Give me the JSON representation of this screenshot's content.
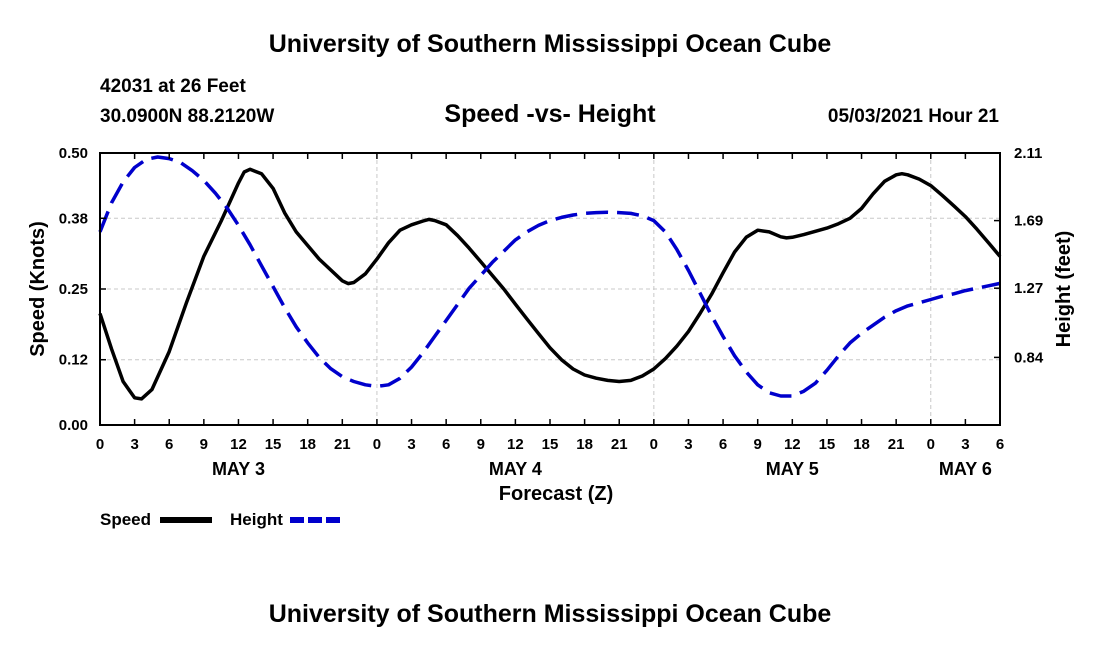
{
  "header": {
    "title": "University of Southern Mississippi Ocean Cube",
    "station": "42031 at 26 Feet",
    "coords": "30.0900N  88.2120W",
    "subtitle": "Speed -vs- Height",
    "datetime": "05/03/2021 Hour 21"
  },
  "footer": {
    "title": "University of Southern Mississippi Ocean Cube"
  },
  "chart_data": {
    "type": "line",
    "title": "Speed -vs- Height",
    "xlabel": "Forecast (Z)",
    "ylabel_left": "Speed (Knots)",
    "ylabel_right": "Height (feet)",
    "x_unit": "hours since May 3 00Z",
    "xlim": [
      0,
      78
    ],
    "ylim_left": [
      0.0,
      0.5
    ],
    "ylim_right": [
      0.42,
      2.11
    ],
    "yticks_left": [
      0.0,
      0.12,
      0.25,
      0.38,
      0.5
    ],
    "yticks_left_labels": [
      "0.00",
      "0.12",
      "0.25",
      "0.38",
      "0.50"
    ],
    "yticks_right": [
      0.84,
      1.27,
      1.69,
      2.11
    ],
    "yticks_right_labels": [
      "0.84",
      "1.27",
      "1.69",
      "2.11"
    ],
    "xticks": [
      0,
      3,
      6,
      9,
      12,
      15,
      18,
      21,
      24,
      27,
      30,
      33,
      36,
      39,
      42,
      45,
      48,
      51,
      54,
      57,
      60,
      63,
      66,
      69,
      72,
      75,
      78
    ],
    "xtick_labels": [
      "0",
      "3",
      "6",
      "9",
      "12",
      "15",
      "18",
      "21",
      "0",
      "3",
      "6",
      "9",
      "12",
      "15",
      "18",
      "21",
      "0",
      "3",
      "6",
      "9",
      "12",
      "15",
      "18",
      "21",
      "0",
      "3",
      "6"
    ],
    "day_labels": [
      {
        "x": 12,
        "label": "MAY 3"
      },
      {
        "x": 36,
        "label": "MAY 4"
      },
      {
        "x": 60,
        "label": "MAY 5"
      },
      {
        "x": 75,
        "label": "MAY 6"
      }
    ],
    "grid": true,
    "legend": "bottom-left",
    "series": [
      {
        "name": "Speed",
        "axis": "left",
        "color": "#000000",
        "dash": "solid",
        "points": [
          [
            0,
            0.205
          ],
          [
            1,
            0.14
          ],
          [
            2,
            0.08
          ],
          [
            3,
            0.05
          ],
          [
            3.6,
            0.048
          ],
          [
            4.5,
            0.065
          ],
          [
            6,
            0.135
          ],
          [
            7.5,
            0.225
          ],
          [
            9,
            0.31
          ],
          [
            10.5,
            0.375
          ],
          [
            12,
            0.445
          ],
          [
            12.5,
            0.465
          ],
          [
            13,
            0.47
          ],
          [
            14,
            0.462
          ],
          [
            15,
            0.435
          ],
          [
            16,
            0.39
          ],
          [
            17,
            0.355
          ],
          [
            18,
            0.33
          ],
          [
            19,
            0.305
          ],
          [
            20,
            0.285
          ],
          [
            21,
            0.265
          ],
          [
            21.5,
            0.26
          ],
          [
            22,
            0.262
          ],
          [
            23,
            0.278
          ],
          [
            24,
            0.305
          ],
          [
            25,
            0.335
          ],
          [
            26,
            0.358
          ],
          [
            27,
            0.368
          ],
          [
            28,
            0.375
          ],
          [
            28.5,
            0.378
          ],
          [
            29,
            0.376
          ],
          [
            30,
            0.368
          ],
          [
            31,
            0.348
          ],
          [
            32,
            0.325
          ],
          [
            33,
            0.3
          ],
          [
            34,
            0.275
          ],
          [
            35,
            0.25
          ],
          [
            36,
            0.222
          ],
          [
            37,
            0.195
          ],
          [
            38,
            0.168
          ],
          [
            39,
            0.142
          ],
          [
            40,
            0.12
          ],
          [
            41,
            0.103
          ],
          [
            42,
            0.092
          ],
          [
            43,
            0.086
          ],
          [
            44,
            0.082
          ],
          [
            45,
            0.08
          ],
          [
            46,
            0.082
          ],
          [
            47,
            0.09
          ],
          [
            48,
            0.103
          ],
          [
            49,
            0.122
          ],
          [
            50,
            0.145
          ],
          [
            51,
            0.172
          ],
          [
            52,
            0.205
          ],
          [
            53,
            0.24
          ],
          [
            54,
            0.28
          ],
          [
            55,
            0.318
          ],
          [
            56,
            0.345
          ],
          [
            57,
            0.358
          ],
          [
            58,
            0.355
          ],
          [
            59,
            0.346
          ],
          [
            59.5,
            0.344
          ],
          [
            60,
            0.345
          ],
          [
            61,
            0.35
          ],
          [
            62,
            0.356
          ],
          [
            63,
            0.362
          ],
          [
            64,
            0.37
          ],
          [
            65,
            0.38
          ],
          [
            66,
            0.398
          ],
          [
            67,
            0.425
          ],
          [
            68,
            0.448
          ],
          [
            69,
            0.46
          ],
          [
            69.5,
            0.462
          ],
          [
            70,
            0.46
          ],
          [
            71,
            0.452
          ],
          [
            72,
            0.44
          ],
          [
            73,
            0.422
          ],
          [
            74,
            0.403
          ],
          [
            75,
            0.383
          ],
          [
            76,
            0.36
          ],
          [
            77,
            0.335
          ],
          [
            78,
            0.31
          ]
        ]
      },
      {
        "name": "Height",
        "axis": "right",
        "color": "#0000cc",
        "dash": "dashed",
        "points": [
          [
            0,
            1.62
          ],
          [
            1,
            1.8
          ],
          [
            2,
            1.93
          ],
          [
            3,
            2.02
          ],
          [
            4,
            2.07
          ],
          [
            5,
            2.085
          ],
          [
            6,
            2.075
          ],
          [
            7,
            2.05
          ],
          [
            8,
            2.0
          ],
          [
            9,
            1.94
          ],
          [
            10,
            1.86
          ],
          [
            11,
            1.77
          ],
          [
            12,
            1.66
          ],
          [
            13,
            1.54
          ],
          [
            14,
            1.41
          ],
          [
            15,
            1.28
          ],
          [
            16,
            1.15
          ],
          [
            17,
            1.03
          ],
          [
            18,
            0.93
          ],
          [
            19,
            0.84
          ],
          [
            20,
            0.77
          ],
          [
            21,
            0.72
          ],
          [
            22,
            0.69
          ],
          [
            23,
            0.67
          ],
          [
            24,
            0.66
          ],
          [
            25,
            0.67
          ],
          [
            26,
            0.71
          ],
          [
            27,
            0.78
          ],
          [
            28,
            0.87
          ],
          [
            29,
            0.97
          ],
          [
            30,
            1.07
          ],
          [
            31,
            1.17
          ],
          [
            32,
            1.27
          ],
          [
            33,
            1.35
          ],
          [
            34,
            1.43
          ],
          [
            35,
            1.5
          ],
          [
            36,
            1.57
          ],
          [
            37,
            1.62
          ],
          [
            38,
            1.66
          ],
          [
            39,
            1.69
          ],
          [
            40,
            1.71
          ],
          [
            41,
            1.725
          ],
          [
            42,
            1.735
          ],
          [
            43,
            1.74
          ],
          [
            44,
            1.742
          ],
          [
            45,
            1.74
          ],
          [
            46,
            1.735
          ],
          [
            47,
            1.72
          ],
          [
            48,
            1.69
          ],
          [
            49,
            1.62
          ],
          [
            50,
            1.51
          ],
          [
            51,
            1.38
          ],
          [
            52,
            1.24
          ],
          [
            53,
            1.1
          ],
          [
            54,
            0.97
          ],
          [
            55,
            0.85
          ],
          [
            56,
            0.75
          ],
          [
            57,
            0.67
          ],
          [
            58,
            0.62
          ],
          [
            59,
            0.6
          ],
          [
            60,
            0.6
          ],
          [
            61,
            0.63
          ],
          [
            62,
            0.68
          ],
          [
            63,
            0.76
          ],
          [
            64,
            0.85
          ],
          [
            65,
            0.93
          ],
          [
            66,
            0.99
          ],
          [
            67,
            1.04
          ],
          [
            68,
            1.09
          ],
          [
            69,
            1.13
          ],
          [
            70,
            1.16
          ],
          [
            71,
            1.18
          ],
          [
            72,
            1.2
          ],
          [
            73,
            1.22
          ],
          [
            74,
            1.235
          ],
          [
            75,
            1.255
          ],
          [
            76,
            1.27
          ],
          [
            77,
            1.285
          ],
          [
            78,
            1.3
          ]
        ]
      }
    ]
  }
}
